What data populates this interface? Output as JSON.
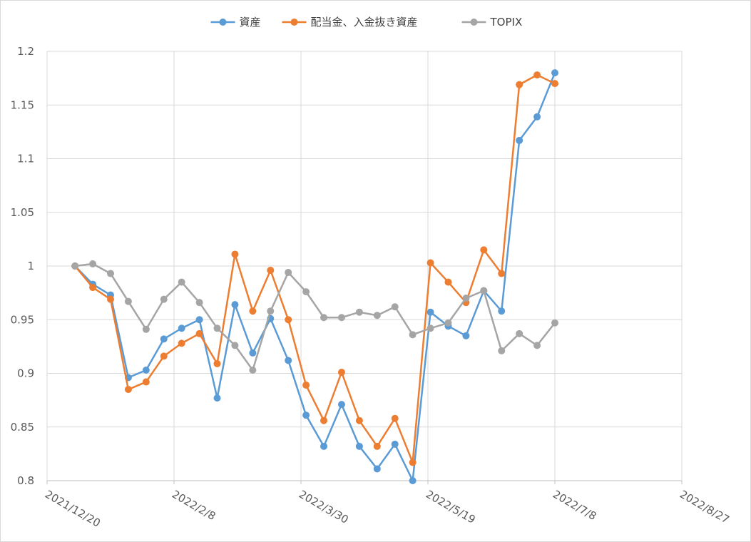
{
  "chart_data": {
    "type": "line",
    "title": "",
    "xlabel": "",
    "ylabel": "",
    "xlim": [
      "2021-12-20",
      "2022-08-27"
    ],
    "ylim": [
      0.8,
      1.2
    ],
    "grid": true,
    "legend_position": "top",
    "x_tick_labels": [
      "2021/12/20",
      "2022/2/8",
      "2022/3/30",
      "2022/5/19",
      "2022/7/8",
      "2022/8/27"
    ],
    "y_tick_labels": [
      "0.8",
      "0.85",
      "0.9",
      "0.95",
      "1",
      "1.05",
      "1.1",
      "1.15",
      "1.2"
    ],
    "x": [
      "2021-12-31",
      "2022-01-07",
      "2022-01-14",
      "2022-01-21",
      "2022-01-28",
      "2022-02-04",
      "2022-02-11",
      "2022-02-18",
      "2022-02-25",
      "2022-03-04",
      "2022-03-11",
      "2022-03-18",
      "2022-03-25",
      "2022-04-01",
      "2022-04-08",
      "2022-04-15",
      "2022-04-22",
      "2022-04-29",
      "2022-05-06",
      "2022-05-13",
      "2022-05-20",
      "2022-05-27",
      "2022-06-03",
      "2022-06-10",
      "2022-06-17",
      "2022-06-24",
      "2022-07-01",
      "2022-07-08",
      "2022-07-09"
    ],
    "series": [
      {
        "name": "資産",
        "color": "#5b9bd5",
        "values": [
          1.0,
          0.983,
          0.973,
          0.896,
          0.903,
          0.932,
          0.942,
          0.95,
          0.877,
          0.964,
          0.919,
          0.951,
          0.912,
          0.861,
          0.832,
          0.871,
          0.832,
          0.811,
          0.834,
          0.8,
          0.957,
          0.944,
          0.935,
          0.977,
          0.958,
          1.117,
          1.139,
          1.18,
          null
        ]
      },
      {
        "name": "配当金、入金抜き資産",
        "color": "#ed7d31",
        "values": [
          1.0,
          0.98,
          0.969,
          0.885,
          0.892,
          0.916,
          0.928,
          0.937,
          0.909,
          1.011,
          0.958,
          0.996,
          0.95,
          0.889,
          0.856,
          0.901,
          0.856,
          0.832,
          0.858,
          0.817,
          1.003,
          0.985,
          0.966,
          1.015,
          0.993,
          1.169,
          1.178,
          1.17,
          null
        ]
      },
      {
        "name": "TOPIX",
        "color": "#a5a5a5",
        "values": [
          1.0,
          1.002,
          0.993,
          0.967,
          0.941,
          0.969,
          0.985,
          0.966,
          0.942,
          0.926,
          0.903,
          0.958,
          0.994,
          0.976,
          0.952,
          0.952,
          0.957,
          0.954,
          0.962,
          0.936,
          0.942,
          0.947,
          0.97,
          0.977,
          0.921,
          0.937,
          0.926,
          0.947,
          null
        ]
      }
    ]
  }
}
